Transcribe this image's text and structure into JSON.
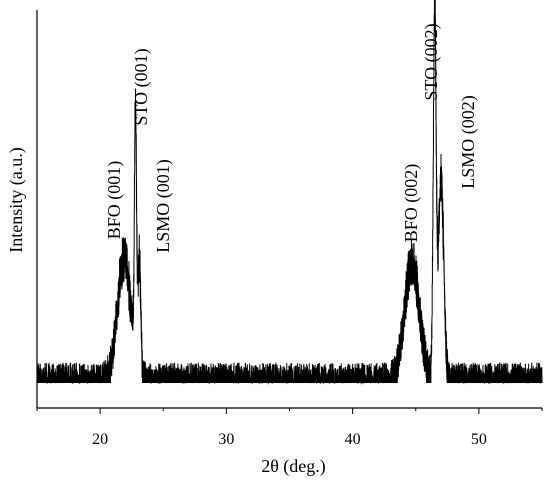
{
  "chart_data": {
    "type": "line",
    "xlabel": "2θ (deg.)",
    "ylabel": "Intensity (a.u.)",
    "xlim": [
      15,
      55
    ],
    "ylim": [
      0,
      1
    ],
    "x_ticks": [
      20,
      30,
      40,
      50
    ],
    "x_tick_labels": [
      "20",
      "30",
      "40",
      "50"
    ],
    "y_ticks_labeled": false,
    "grid": false,
    "legend": "none",
    "line_color": "#000000",
    "noise_level": 0.055,
    "peaks": [
      {
        "label": "BFO (001)",
        "center": 21.9,
        "height": 0.33,
        "width": 0.55
      },
      {
        "label": "STO (001)",
        "center": 22.8,
        "height": 0.66,
        "width": 0.08
      },
      {
        "label": "LSMO (001)",
        "center": 23.1,
        "height": 0.3,
        "width": 0.12
      },
      {
        "label": "BFO (002)",
        "center": 44.7,
        "height": 0.32,
        "width": 0.6
      },
      {
        "label": "STO (002)",
        "center": 46.5,
        "height": 0.99,
        "width": 0.11
      },
      {
        "label": "LSMO (002)",
        "center": 47.0,
        "height": 0.55,
        "width": 0.22
      }
    ]
  }
}
